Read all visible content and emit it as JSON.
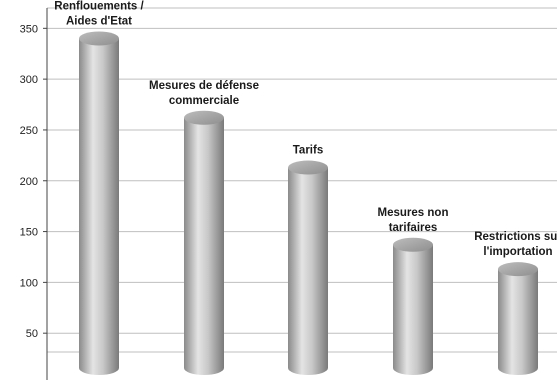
{
  "chart_data": {
    "type": "bar",
    "style": "cylinder",
    "categories": [
      [
        "Renflouements /",
        "Aides d'Etat"
      ],
      [
        "Mesures de défense",
        "commerciale"
      ],
      [
        "Tarifs"
      ],
      [
        "Mesures non",
        "tarifaires"
      ],
      [
        "Restrictions sur",
        "l'importation"
      ]
    ],
    "values": [
      340,
      262,
      213,
      137,
      113
    ],
    "ylim": [
      0,
      370
    ],
    "yticks": [
      50,
      100,
      150,
      200,
      250,
      300,
      350
    ],
    "grid": true,
    "colors": {
      "bar": "#b8b8b8",
      "grid": "#bfbfbf",
      "axis": "#444444"
    }
  }
}
